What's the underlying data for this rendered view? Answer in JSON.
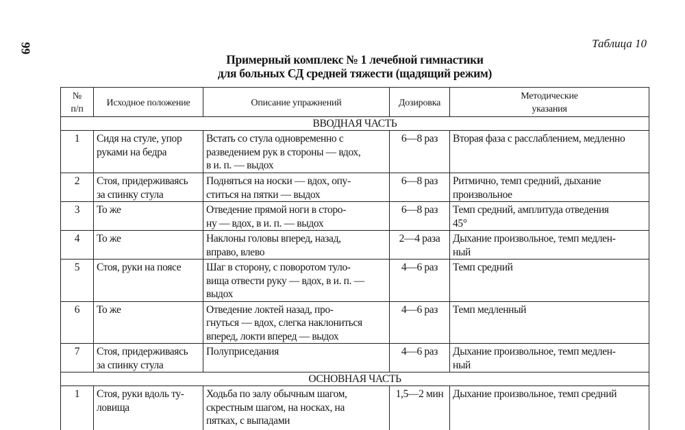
{
  "page_number": "99",
  "table_label": "Таблица 10",
  "title_line1": "Примерный комплекс № 1 лечебной гимнастики",
  "title_line2": "для больных СД средней тяжести (щадящий режим)",
  "headers": [
    "№\nп/п",
    "Исходное положение",
    "Описание упражнений",
    "Дозировка",
    "Методические\nуказания"
  ],
  "sections": [
    {
      "title": "ВВОДНАЯ ЧАСТЬ",
      "rows": [
        {
          "n": "1",
          "position": "Сидя на стуле, упор\nруками на бедра",
          "description": "Встать со стула одновременно с\nразведением рук в стороны — вдох,\nв и. п. — выдох",
          "dosage": "6—8 раз",
          "notes": "Вторая фаза с расслаблением, медленно"
        },
        {
          "n": "2",
          "position": "Стоя, придерживаясь\nза спинку стула",
          "description": "Подняться на носки — вдох, опу-\nститься на пятки — выдох",
          "dosage": "6—8 раз",
          "notes": "Ритмично, темп средний, дыхание\nпроизвольное"
        },
        {
          "n": "3",
          "position": "То же",
          "description": "Отведение прямой ноги в сторо-\nну — вдох, в и. п. — выдох",
          "dosage": "6—8 раз",
          "notes": "Темп средний, амплитуда отведения\n45°"
        },
        {
          "n": "4",
          "position": "То же",
          "description": " Наклоны головы вперед, назад,\nвправо, влево",
          "dosage": "2—4 раза",
          "notes": "Дыхание произвольное, темп медлен-\nный"
        },
        {
          "n": "5",
          "position": "Стоя, руки на поясе",
          "description": "Шаг в сторону, с поворотом туло-\nвища отвести руку — вдох, в и. п. —\nвыдох",
          "dosage": "4—6 раз",
          "notes": "Темп средний"
        },
        {
          "n": "6",
          "position": "То же",
          "description": "Отведение локтей назад, про-\nгнуться — вдох, слегка наклониться\nвперед, локти вперед — выдох",
          "dosage": "4—6 раз",
          "notes": "Темп медленный"
        },
        {
          "n": "7",
          "position": "Стоя, придерживаясь\nза спинку стула",
          "description": " Полуприседания",
          "dosage": "4—6 раз",
          "notes": "Дыхание произвольное, темп медлен-\nный"
        }
      ]
    },
    {
      "title": "ОСНОВНАЯ ЧАСТЬ",
      "rows": [
        {
          "n": "1",
          "position": "Стоя, руки вдоль ту-\nловища",
          "description": "Ходьба по залу обычным шагом,\nскрестным шагом, на носках, на\nпятках, с выпадами",
          "dosage": "1,5—2 мин",
          "notes": "Дыхание произвольное, темп средний"
        }
      ]
    }
  ]
}
